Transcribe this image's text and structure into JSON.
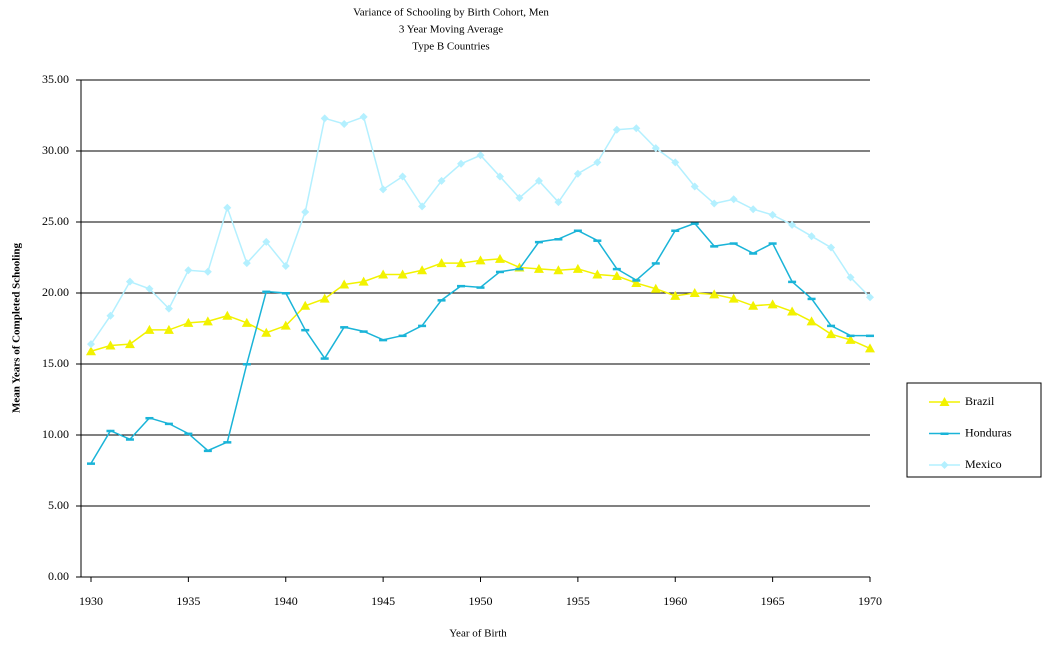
{
  "chart_data": {
    "type": "line",
    "title": "Variance of Schooling by Birth Cohort, Men",
    "subtitle": [
      "3 Year Moving Average",
      "Type B Countries"
    ],
    "x_label": "Year of Birth",
    "y_label": "Mean Years of Completed Schooling",
    "x": [
      1930,
      1931,
      1932,
      1933,
      1934,
      1935,
      1936,
      1937,
      1938,
      1939,
      1940,
      1941,
      1942,
      1943,
      1944,
      1945,
      1946,
      1947,
      1948,
      1949,
      1950,
      1951,
      1952,
      1953,
      1954,
      1955,
      1956,
      1957,
      1958,
      1959,
      1960,
      1961,
      1962,
      1963,
      1964,
      1965,
      1966,
      1967,
      1968,
      1969,
      1970
    ],
    "series": [
      {
        "name": "Brazil",
        "color": "#f2f200",
        "marker": "triangle",
        "values": [
          15.9,
          16.3,
          16.4,
          17.4,
          17.4,
          17.9,
          18.0,
          18.4,
          17.9,
          17.2,
          17.7,
          19.1,
          19.6,
          20.6,
          20.8,
          21.3,
          21.3,
          21.6,
          22.1,
          22.1,
          22.3,
          22.4,
          21.8,
          21.7,
          21.6,
          21.7,
          21.3,
          21.2,
          20.7,
          20.3,
          19.8,
          20.0,
          19.9,
          19.6,
          19.1,
          19.2,
          18.7,
          18.0,
          17.1,
          16.7,
          16.1
        ]
      },
      {
        "name": "Honduras",
        "color": "#1ab4d8",
        "marker": "dash",
        "values": [
          8.0,
          10.3,
          9.7,
          11.2,
          10.8,
          10.1,
          8.9,
          9.5,
          15.0,
          20.1,
          20.0,
          17.4,
          15.4,
          17.6,
          17.3,
          16.7,
          17.0,
          17.7,
          19.5,
          20.5,
          20.4,
          21.5,
          21.7,
          23.6,
          23.8,
          24.4,
          23.7,
          21.7,
          20.9,
          22.1,
          24.4,
          24.9,
          23.3,
          23.5,
          22.8,
          23.5,
          20.8,
          19.6,
          17.7,
          17.0,
          17.0
        ]
      },
      {
        "name": "Mexico",
        "color": "#b4f0ff",
        "marker": "diamond",
        "values": [
          16.4,
          18.4,
          20.8,
          20.3,
          18.9,
          21.6,
          21.5,
          26.0,
          22.1,
          23.6,
          21.9,
          25.7,
          32.3,
          31.9,
          32.4,
          27.3,
          28.2,
          26.1,
          27.9,
          29.1,
          29.7,
          28.2,
          26.7,
          27.9,
          26.4,
          28.4,
          29.2,
          31.5,
          31.6,
          30.2,
          29.2,
          27.5,
          26.3,
          26.6,
          25.9,
          25.5,
          24.8,
          24.0,
          23.2,
          21.1,
          19.7
        ]
      }
    ],
    "xlim": [
      1930,
      1970
    ],
    "xticks": [
      1930,
      1935,
      1940,
      1945,
      1950,
      1955,
      1960,
      1965,
      1970
    ],
    "ylim": [
      0,
      35
    ],
    "yticks": [
      {
        "value": 0,
        "label": "0.00"
      },
      {
        "value": 5,
        "label": "5.00"
      },
      {
        "value": 10,
        "label": "10.00"
      },
      {
        "value": 15,
        "label": "15.00"
      },
      {
        "value": 20,
        "label": "20.00"
      },
      {
        "value": 25,
        "label": "25.00"
      },
      {
        "value": 30,
        "label": "30.00"
      },
      {
        "value": 35,
        "label": "35.00"
      }
    ],
    "grid": true,
    "legend": "right"
  }
}
